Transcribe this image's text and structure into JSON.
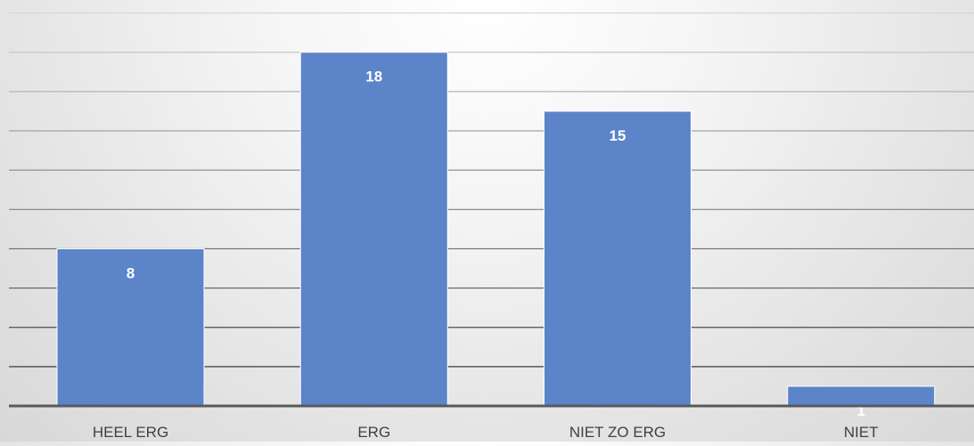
{
  "chart_data": {
    "type": "bar",
    "categories": [
      "HEEL ERG",
      "ERG",
      "NIET ZO ERG",
      "NIET"
    ],
    "series": [
      {
        "values": [
          8,
          18,
          15,
          1
        ]
      }
    ],
    "data_labels": [
      "8",
      "18",
      "15",
      "1"
    ],
    "ylim": [
      0,
      20
    ],
    "grid": true,
    "legend": "none",
    "colors": {
      "bar": "#5b84c9",
      "bar_border": "#ffffff",
      "label": "#ffffff",
      "axis_text": "#404040",
      "axis_line": "#595959"
    }
  }
}
